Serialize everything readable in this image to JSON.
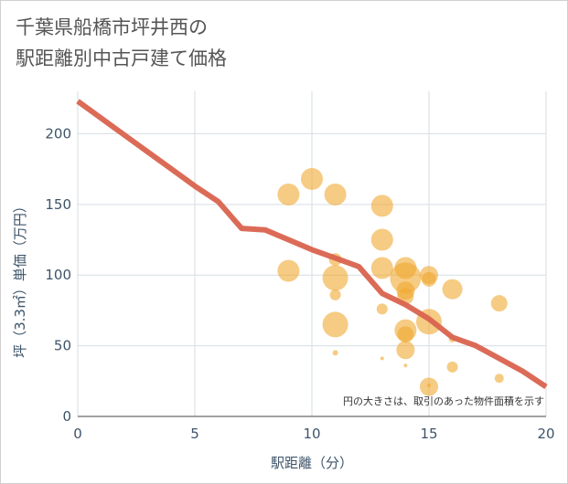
{
  "title_lines": [
    "千葉県船橋市坪井西の",
    "駅距離別中古戸建て価格"
  ],
  "chart_data": {
    "type": "scatter",
    "title": "千葉県船橋市坪井西の駅距離別中古戸建て価格",
    "xlabel": "駅距離（分）",
    "ylabel": "坪（3.3㎡）単価（万円）",
    "xlim": [
      0,
      20
    ],
    "ylim": [
      0,
      230
    ],
    "x_ticks": [
      0,
      5,
      10,
      15,
      20
    ],
    "y_ticks": [
      0,
      50,
      100,
      150,
      200
    ],
    "grid": true,
    "note": "円の大きさは、取引のあった物件面積を示す",
    "bubble_color": "#f0a830",
    "line_color": "#d9634e",
    "points": [
      {
        "x": 9,
        "y": 157,
        "size": 12
      },
      {
        "x": 9,
        "y": 103,
        "size": 12
      },
      {
        "x": 10,
        "y": 168,
        "size": 12
      },
      {
        "x": 11,
        "y": 157,
        "size": 12
      },
      {
        "x": 11,
        "y": 111,
        "size": 7
      },
      {
        "x": 11,
        "y": 98,
        "size": 14
      },
      {
        "x": 11,
        "y": 86,
        "size": 6
      },
      {
        "x": 11,
        "y": 65,
        "size": 14
      },
      {
        "x": 11,
        "y": 45,
        "size": 3
      },
      {
        "x": 13,
        "y": 149,
        "size": 12
      },
      {
        "x": 13,
        "y": 125,
        "size": 12
      },
      {
        "x": 13,
        "y": 105,
        "size": 12
      },
      {
        "x": 13,
        "y": 76,
        "size": 6
      },
      {
        "x": 13,
        "y": 41,
        "size": 2
      },
      {
        "x": 14,
        "y": 105,
        "size": 12
      },
      {
        "x": 14,
        "y": 98,
        "size": 17
      },
      {
        "x": 14,
        "y": 89,
        "size": 10
      },
      {
        "x": 14,
        "y": 85,
        "size": 9
      },
      {
        "x": 14,
        "y": 61,
        "size": 12
      },
      {
        "x": 14,
        "y": 58,
        "size": 9
      },
      {
        "x": 14,
        "y": 47,
        "size": 10
      },
      {
        "x": 14,
        "y": 36,
        "size": 2
      },
      {
        "x": 15,
        "y": 100,
        "size": 10
      },
      {
        "x": 15,
        "y": 97,
        "size": 8
      },
      {
        "x": 15,
        "y": 67,
        "size": 14
      },
      {
        "x": 15,
        "y": 21,
        "size": 10
      },
      {
        "x": 15,
        "y": 22,
        "size": 2
      },
      {
        "x": 16,
        "y": 90,
        "size": 11
      },
      {
        "x": 16,
        "y": 55,
        "size": 4
      },
      {
        "x": 16,
        "y": 35,
        "size": 6
      },
      {
        "x": 18,
        "y": 80,
        "size": 9
      },
      {
        "x": 18,
        "y": 27,
        "size": 5
      }
    ],
    "trend_line": {
      "x": [
        0,
        1,
        2,
        3,
        4,
        5,
        6,
        7,
        8,
        9,
        10,
        11,
        12,
        13,
        14,
        15,
        16,
        17,
        18,
        19,
        20
      ],
      "y": [
        223,
        211,
        199,
        187,
        175,
        163,
        152,
        133,
        132,
        125,
        118,
        112,
        106,
        87,
        79,
        69,
        56,
        50,
        41,
        32,
        21
      ]
    }
  }
}
